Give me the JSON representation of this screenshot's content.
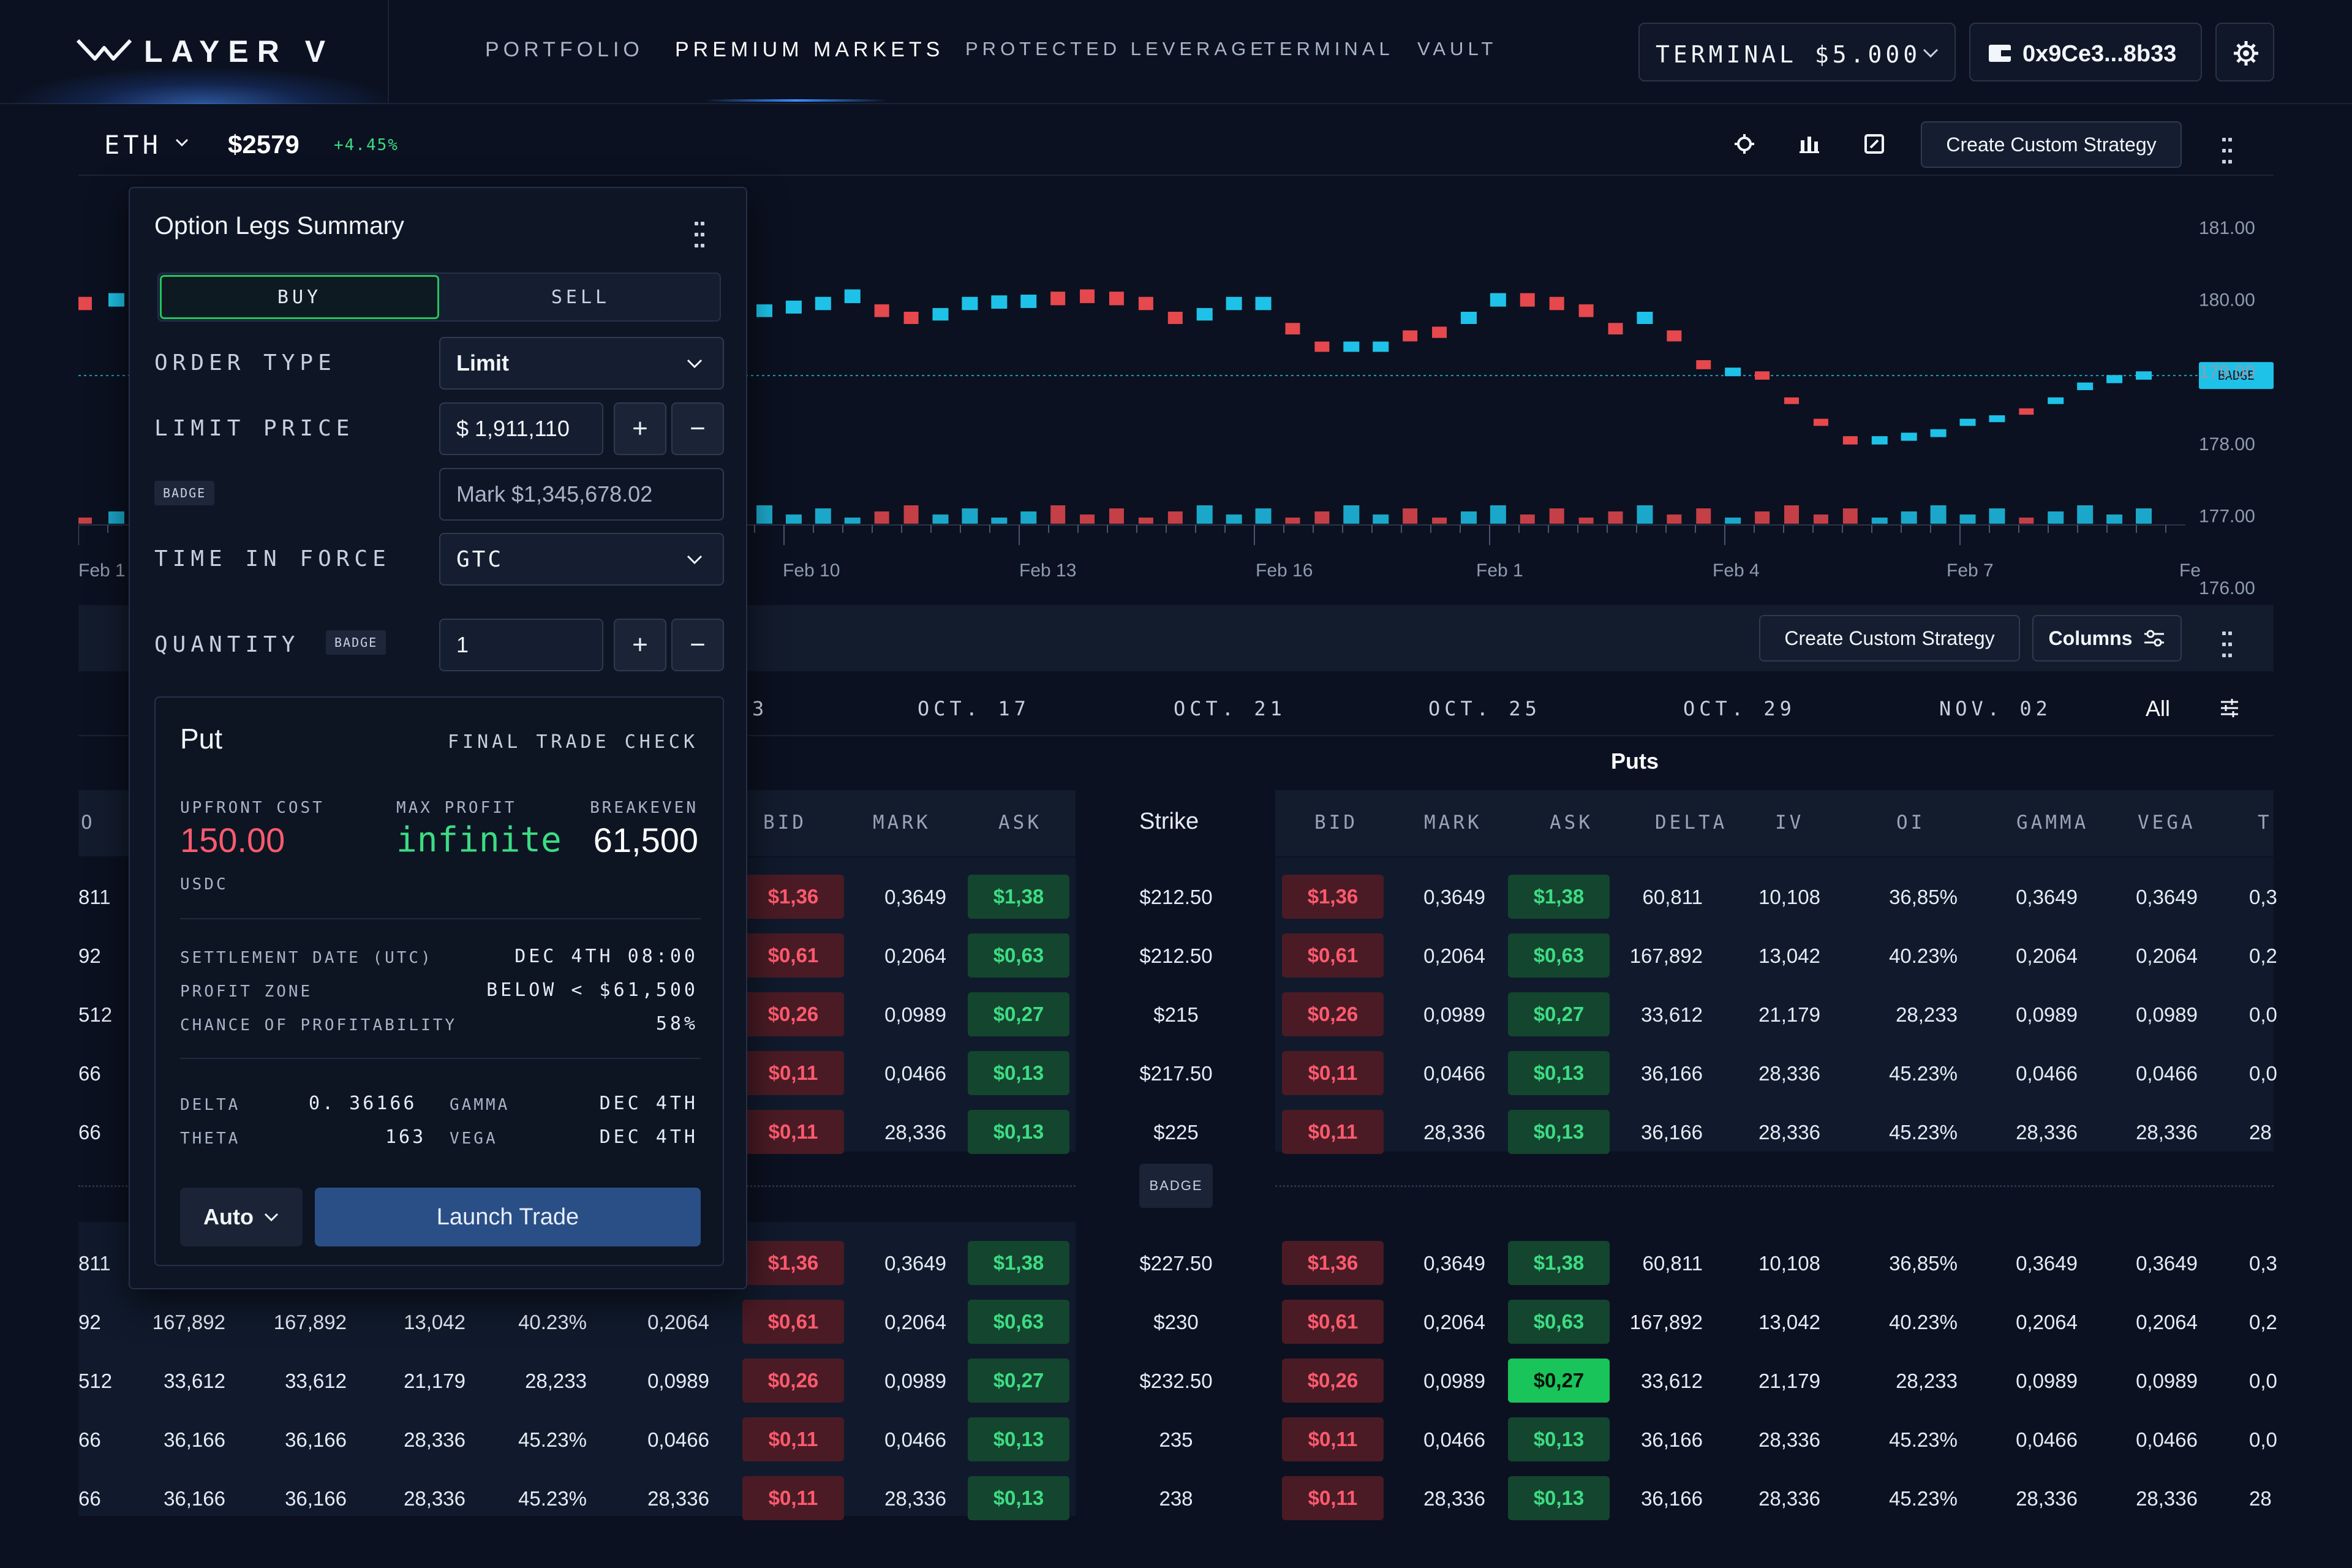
{
  "nav": {
    "logo": "LAYER V",
    "items": [
      "PORTFOLIO",
      "PREMIUM MARKETS",
      "PROTECTED LEVERAGE",
      "TERMINAL",
      "VAULT"
    ],
    "active": "PREMIUM MARKETS",
    "terminal_label": "TERMINAL  $5.000",
    "wallet": "0x9Ce3...8b33"
  },
  "ticker": {
    "symbol": "ETH",
    "price": "$2579",
    "change": "+4.45%"
  },
  "toolbar": {
    "create_strategy": "Create Custom Strategy",
    "columns": "Columns"
  },
  "chart_data": {
    "type": "candlestick",
    "yticks": [
      "181.00",
      "180.00",
      "179.00",
      "178.00",
      "177.00",
      "176.00"
    ],
    "ylim": [
      176,
      181
    ],
    "xticks": [
      "Feb 1",
      "Feb 10",
      "Feb 13",
      "Feb 16",
      "Feb 1",
      "Feb 4",
      "Feb 7",
      "Fe"
    ],
    "current_badge": "BADGE",
    "current_price": 178.95,
    "candles": [
      {
        "v": 179.95,
        "dir": "down"
      },
      {
        "v": 180.0,
        "dir": "up"
      },
      {
        "v": 179.85,
        "dir": "up"
      },
      {
        "v": 179.9,
        "dir": "up"
      },
      {
        "v": 179.95,
        "dir": "up"
      },
      {
        "v": 180.05,
        "dir": "up"
      },
      {
        "v": 179.85,
        "dir": "down"
      },
      {
        "v": 179.75,
        "dir": "down"
      },
      {
        "v": 179.8,
        "dir": "up"
      },
      {
        "v": 179.95,
        "dir": "up"
      },
      {
        "v": 179.97,
        "dir": "up"
      },
      {
        "v": 179.98,
        "dir": "up"
      },
      {
        "v": 180.02,
        "dir": "down"
      },
      {
        "v": 180.05,
        "dir": "down"
      },
      {
        "v": 180.02,
        "dir": "down"
      },
      {
        "v": 179.95,
        "dir": "down"
      },
      {
        "v": 179.75,
        "dir": "down"
      },
      {
        "v": 179.8,
        "dir": "up"
      },
      {
        "v": 179.95,
        "dir": "up"
      },
      {
        "v": 179.95,
        "dir": "up"
      },
      {
        "v": 179.6,
        "dir": "down"
      },
      {
        "v": 179.35,
        "dir": "down"
      },
      {
        "v": 179.35,
        "dir": "up"
      },
      {
        "v": 179.35,
        "dir": "up"
      },
      {
        "v": 179.5,
        "dir": "down"
      },
      {
        "v": 179.55,
        "dir": "down"
      },
      {
        "v": 179.75,
        "dir": "up"
      },
      {
        "v": 180.0,
        "dir": "up"
      },
      {
        "v": 180.0,
        "dir": "down"
      },
      {
        "v": 179.95,
        "dir": "down"
      },
      {
        "v": 179.85,
        "dir": "down"
      },
      {
        "v": 179.6,
        "dir": "down"
      },
      {
        "v": 179.75,
        "dir": "up"
      },
      {
        "v": 179.5,
        "dir": "down"
      },
      {
        "v": 179.1,
        "dir": "down"
      },
      {
        "v": 179.0,
        "dir": "up"
      },
      {
        "v": 178.95,
        "dir": "down"
      },
      {
        "v": 178.6,
        "dir": "down"
      },
      {
        "v": 178.3,
        "dir": "down"
      },
      {
        "v": 178.05,
        "dir": "down"
      },
      {
        "v": 178.05,
        "dir": "up"
      },
      {
        "v": 178.1,
        "dir": "up"
      },
      {
        "v": 178.15,
        "dir": "up"
      },
      {
        "v": 178.3,
        "dir": "up"
      },
      {
        "v": 178.35,
        "dir": "up"
      },
      {
        "v": 178.45,
        "dir": "down"
      },
      {
        "v": 178.6,
        "dir": "up"
      },
      {
        "v": 178.8,
        "dir": "up"
      },
      {
        "v": 178.9,
        "dir": "up"
      },
      {
        "v": 178.95,
        "dir": "up"
      }
    ]
  },
  "panel": {
    "title": "Option Legs Summary",
    "buy": "BUY",
    "sell": "SELL",
    "order_type_label": "ORDER TYPE",
    "order_type": "Limit",
    "limit_label": "LIMIT PRICE",
    "limit_value": "$  1,911,110",
    "badge": "BADGE",
    "mark": "Mark $1,345,678.02",
    "tif_label": "TIME IN FORCE",
    "tif": "GTC",
    "qty_label": "QUANTITY",
    "qty": "1",
    "summary": {
      "title": "Put",
      "check": "FINAL TRADE CHECK",
      "upfront_label": "UPFRONT COST",
      "upfront": "150.00",
      "upfront_unit": "USDC",
      "maxprofit_label": "MAX PROFIT",
      "maxprofit": "infinite",
      "breakeven_label": "BREAKEVEN",
      "breakeven": "61,500",
      "settle_label": "SETTLEMENT DATE (UTC)",
      "settle": "DEC 4TH 08:00",
      "zone_label": "PROFIT ZONE",
      "zone": "BELOW < $61,500",
      "chance_label": "CHANCE OF PROFITABILITY",
      "chance": "58%",
      "delta_label": "DELTA",
      "delta": "0. 36166",
      "gamma_label": "GAMMA",
      "gamma": "DEC 4TH",
      "theta_label": "THETA",
      "theta": "163",
      "vega_label": "VEGA",
      "vega": "DEC 4TH"
    },
    "auto": "Auto",
    "launch": "Launch Trade"
  },
  "expiries": [
    "3",
    "OCT. 17",
    "OCT. 21",
    "OCT. 25",
    "OCT. 29",
    "NOV. 02",
    "All"
  ],
  "table": {
    "puts_label": "Puts",
    "strike_label": "Strike",
    "mid_badge": "BADGE",
    "call_headers": [
      "O",
      "BID",
      "MARK",
      "ASK"
    ],
    "put_headers": [
      "BID",
      "MARK",
      "ASK",
      "DELTA",
      "IV",
      "OI",
      "GAMMA",
      "VEGA",
      "T"
    ],
    "rows": [
      {
        "strike": "$212.50",
        "c": [
          "811",
          "",
          "",
          "",
          "",
          ""
        ],
        "bid": "$1,36",
        "mark": "0,3649",
        "ask": "$1,38",
        "p": [
          "60,811",
          "10,108",
          "36,85%",
          "0,3649",
          "0,3649",
          "0,3"
        ],
        "pmark": "0,3649",
        "hot": false
      },
      {
        "strike": "$212.50",
        "c": [
          "92",
          "",
          "",
          "",
          "",
          ""
        ],
        "bid": "$0,61",
        "mark": "0,2064",
        "ask": "$0,63",
        "p": [
          "167,892",
          "13,042",
          "40.23%",
          "0,2064",
          "0,2064",
          "0,2"
        ],
        "pmark": "0,2064",
        "hot": false
      },
      {
        "strike": "$215",
        "c": [
          "512",
          "",
          "",
          "",
          "",
          ""
        ],
        "bid": "$0,26",
        "mark": "0,0989",
        "ask": "$0,27",
        "p": [
          "33,612",
          "21,179",
          "28,233",
          "0,0989",
          "0,0989",
          "0,0"
        ],
        "pmark": "0,0989",
        "hot": false
      },
      {
        "strike": "$217.50",
        "c": [
          "66",
          "",
          "",
          "",
          "",
          ""
        ],
        "bid": "$0,11",
        "mark": "0,0466",
        "ask": "$0,13",
        "p": [
          "36,166",
          "28,336",
          "45.23%",
          "0,0466",
          "0,0466",
          "0,0"
        ],
        "pmark": "0,0466",
        "hot": false
      },
      {
        "strike": "$225",
        "c": [
          "66",
          "",
          "",
          "",
          "",
          ""
        ],
        "bid": "$0,11",
        "mark": "28,336",
        "ask": "$0,13",
        "p": [
          "36,166",
          "28,336",
          "45.23%",
          "28,336",
          "28,336",
          "28"
        ],
        "pmark": "28,336",
        "hot": false
      },
      {
        "strike": "$227.50",
        "c": [
          "811",
          "",
          "",
          "",
          "",
          ""
        ],
        "bid": "$1,36",
        "mark": "0,3649",
        "ask": "$1,38",
        "p": [
          "60,811",
          "10,108",
          "36,85%",
          "0,3649",
          "0,3649",
          "0,3"
        ],
        "pmark": "0,3649",
        "hot": false
      },
      {
        "strike": "$230",
        "c": [
          "92",
          "167,892",
          "167,892",
          "13,042",
          "40.23%",
          "0,2064"
        ],
        "bid": "$0,61",
        "mark": "0,2064",
        "ask": "$0,63",
        "p": [
          "167,892",
          "13,042",
          "40.23%",
          "0,2064",
          "0,2064",
          "0,2"
        ],
        "pmark": "0,2064",
        "hot": false
      },
      {
        "strike": "$232.50",
        "c": [
          "512",
          "33,612",
          "33,612",
          "21,179",
          "28,233",
          "0,0989"
        ],
        "bid": "$0,26",
        "mark": "0,0989",
        "ask": "$0,27",
        "p": [
          "33,612",
          "21,179",
          "28,233",
          "0,0989",
          "0,0989",
          "0,0"
        ],
        "pmark": "0,0989",
        "hot": true
      },
      {
        "strike": "235",
        "c": [
          "66",
          "36,166",
          "36,166",
          "28,336",
          "45.23%",
          "0,0466"
        ],
        "bid": "$0,11",
        "mark": "0,0466",
        "ask": "$0,13",
        "p": [
          "36,166",
          "28,336",
          "45.23%",
          "0,0466",
          "0,0466",
          "0,0"
        ],
        "pmark": "0,0466",
        "hot": false
      },
      {
        "strike": "238",
        "c": [
          "66",
          "36,166",
          "36,166",
          "28,336",
          "45.23%",
          "28,336"
        ],
        "bid": "$0,11",
        "mark": "28,336",
        "ask": "$0,13",
        "p": [
          "36,166",
          "28,336",
          "45.23%",
          "28,336",
          "28,336",
          "28"
        ],
        "pmark": "28,336",
        "hot": false
      }
    ]
  },
  "colors": {
    "up": "#1ec2e8",
    "down": "#e5484d",
    "bg": "#0b1120",
    "accent": "#3a8dff"
  },
  "icons": [
    "logo-v-icon",
    "chevron-down-icon",
    "wallet-icon",
    "gear-icon",
    "settings-icon",
    "chart-bars-icon",
    "calculator-icon",
    "more-vert-icon",
    "sliders-icon",
    "plus-icon",
    "minus-icon"
  ]
}
